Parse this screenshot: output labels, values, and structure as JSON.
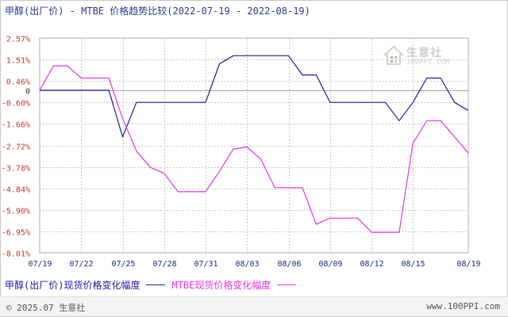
{
  "header": {
    "title": "甲醇(出厂价) - MTBE 价格趋势比较(2022-07-19 - 2022-08-19)"
  },
  "watermark": {
    "logo_text": "生意社",
    "logo_sub": "100PPI.COM"
  },
  "footer": {
    "copyright": "© 2025.07 生意社",
    "site": "www.100PPI.com"
  },
  "colors": {
    "series_1": "#1a1aa6",
    "series_2": "#e633e6",
    "grid": "#c8c8c8",
    "zero_line": "#a0a0a0",
    "tick_text": "#c0392b",
    "axis_text": "#1a2a7a"
  },
  "chart_data": {
    "type": "line",
    "title": "甲醇(出厂价) - MTBE 价格趋势比较(2022-07-19 - 2022-08-19)",
    "xlabel": "",
    "ylabel": "",
    "ylim": [
      -8.01,
      2.57
    ],
    "grid": true,
    "legend_position": "bottom-left",
    "y_ticks": [
      "2.57%",
      "1.51%",
      "0.46%",
      "0",
      "-0.60%",
      "-1.66%",
      "-2.72%",
      "-3.78%",
      "-4.84%",
      "-5.90%",
      "-6.95%",
      "-8.01%"
    ],
    "y_tick_values": [
      2.57,
      1.51,
      0.46,
      0,
      -0.6,
      -1.66,
      -2.72,
      -3.78,
      -4.84,
      -5.9,
      -6.95,
      -8.01
    ],
    "x_ticks": [
      "07/19",
      "07/22",
      "07/25",
      "07/28",
      "07/31",
      "08/03",
      "08/06",
      "08/09",
      "08/12",
      "08/15",
      "08/19"
    ],
    "x_tick_offsets": [
      0,
      3,
      6,
      9,
      12,
      15,
      18,
      21,
      24,
      27,
      31
    ],
    "series": [
      {
        "name": "甲醇(出厂价)现货价格变化幅度",
        "color": "#1a1aa6",
        "points": [
          [
            0,
            0
          ],
          [
            1,
            0
          ],
          [
            2,
            0
          ],
          [
            3,
            0
          ],
          [
            4,
            0
          ],
          [
            5,
            0
          ],
          [
            6,
            -2.3
          ],
          [
            7,
            -0.6
          ],
          [
            8,
            -0.6
          ],
          [
            9,
            -0.6
          ],
          [
            10,
            -0.6
          ],
          [
            11,
            -0.6
          ],
          [
            12,
            -0.6
          ],
          [
            13,
            1.3
          ],
          [
            14,
            1.7
          ],
          [
            15,
            1.7
          ],
          [
            16,
            1.7
          ],
          [
            17,
            1.7
          ],
          [
            18,
            1.7
          ],
          [
            19,
            0.75
          ],
          [
            20,
            0.75
          ],
          [
            21,
            -0.6
          ],
          [
            22,
            -0.6
          ],
          [
            23,
            -0.6
          ],
          [
            24,
            -0.6
          ],
          [
            25,
            -0.6
          ],
          [
            26,
            -1.5
          ],
          [
            27,
            -0.6
          ],
          [
            28,
            0.6
          ],
          [
            29,
            0.6
          ],
          [
            30,
            -0.6
          ],
          [
            31,
            -1.0
          ]
        ]
      },
      {
        "name": "MTBE现货价格变化幅度",
        "color": "#e633e6",
        "points": [
          [
            0,
            0
          ],
          [
            1,
            1.2
          ],
          [
            2,
            1.2
          ],
          [
            3,
            0.6
          ],
          [
            4,
            0.6
          ],
          [
            5,
            0.6
          ],
          [
            6,
            -1.4
          ],
          [
            7,
            -3.0
          ],
          [
            8,
            -3.8
          ],
          [
            9,
            -4.1
          ],
          [
            10,
            -5.0
          ],
          [
            11,
            -5.0
          ],
          [
            12,
            -5.0
          ],
          [
            13,
            -4.0
          ],
          [
            14,
            -2.9
          ],
          [
            15,
            -2.8
          ],
          [
            16,
            -3.4
          ],
          [
            17,
            -4.8
          ],
          [
            18,
            -4.8
          ],
          [
            19,
            -4.8
          ],
          [
            20,
            -6.6
          ],
          [
            21,
            -6.3
          ],
          [
            22,
            -6.3
          ],
          [
            23,
            -6.3
          ],
          [
            24,
            -7.0
          ],
          [
            25,
            -7.0
          ],
          [
            26,
            -7.0
          ],
          [
            27,
            -2.6
          ],
          [
            28,
            -1.5
          ],
          [
            29,
            -1.5
          ],
          [
            30,
            -2.3
          ],
          [
            31,
            -3.1
          ]
        ]
      }
    ]
  }
}
